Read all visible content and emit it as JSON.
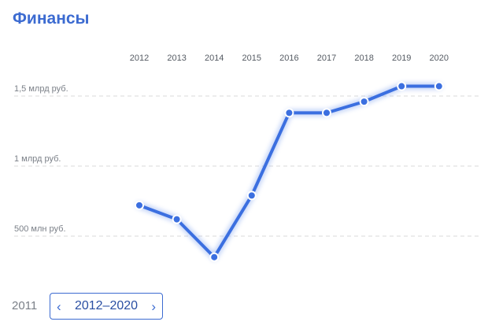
{
  "header": {
    "title": "Финансы"
  },
  "colors": {
    "accent": "#3c6bd1",
    "line": "#3b6fe0",
    "grid": "#d8d8d8",
    "muted": "#7b8088"
  },
  "chart_data": {
    "type": "line",
    "title": "Финансы",
    "x": [
      "2012",
      "2013",
      "2014",
      "2015",
      "2016",
      "2017",
      "2018",
      "2019",
      "2020"
    ],
    "series": [
      {
        "values": [
          0.72,
          0.62,
          0.35,
          0.79,
          1.38,
          1.38,
          1.46,
          1.57,
          1.57
        ]
      }
    ],
    "y_unit": "млрд руб.",
    "ylim": [
      0.3,
      1.6
    ],
    "y_ticks": [
      {
        "value": 0.5,
        "label": "500 млн руб."
      },
      {
        "value": 1.0,
        "label": "1 млрд руб."
      },
      {
        "value": 1.5,
        "label": "1,5 млрд руб."
      }
    ],
    "x_axis_position": "top",
    "grid": "dashed horizontal",
    "legend": "none"
  },
  "pager": {
    "prev_year": "2011",
    "range": "2012–2020",
    "prev_icon": "chevron-left-icon",
    "next_icon": "chevron-right-icon"
  }
}
